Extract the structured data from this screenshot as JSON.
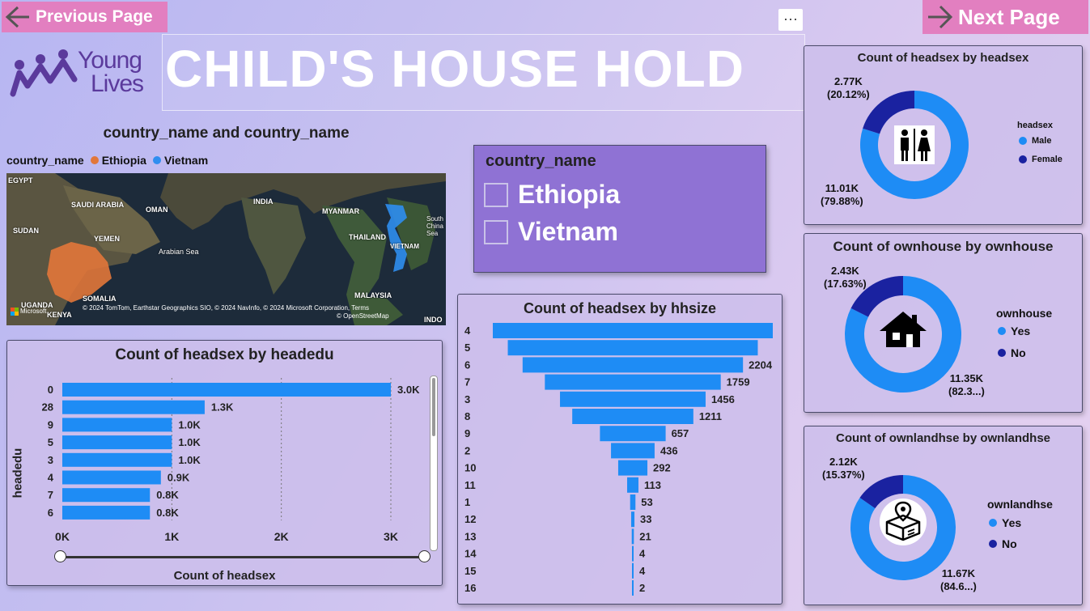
{
  "nav": {
    "previous_label": "Previous Page",
    "next_label": "Next Page",
    "more_label": "···"
  },
  "logo": {
    "line1": "Young",
    "line2": "Lives"
  },
  "page_title": "CHILD'S HOUSE HOLD",
  "map": {
    "title": "country_name and country_name",
    "legend_title": "country_name",
    "legend": [
      {
        "name": "Ethiopia",
        "color": "#e2773a"
      },
      {
        "name": "Vietnam",
        "color": "#2f8ef0"
      }
    ],
    "labels": [
      "EGYPT",
      "SAUDI ARABIA",
      "OMAN",
      "INDIA",
      "MYANMAR",
      "SUDAN",
      "YEMEN",
      "THAILAND",
      "VIETNAM",
      "South China Sea",
      "Arabian Sea",
      "UGANDA",
      "SOMALIA",
      "KENYA",
      "MALAYSIA",
      "INDO"
    ],
    "attribution": "© 2024 TomTom, Earthstar Geographics SIO, © 2024 NavInfo, © 2024 Microsoft Corporation, Terms",
    "osm": "© OpenStreetMap",
    "brand": "Microsoft"
  },
  "slicer": {
    "title": "country_name",
    "items": [
      "Ethiopia",
      "Vietnam"
    ]
  },
  "colors": {
    "bar": "#1e8cf5",
    "dark": "#1a22a0",
    "panel_border": "#4a4a6a"
  },
  "chart_data": [
    {
      "id": "headedu",
      "type": "bar",
      "orientation": "horizontal",
      "title": "Count of headsex by headedu",
      "xlabel": "Count of headsex",
      "ylabel": "headedu",
      "categories": [
        "0",
        "28",
        "9",
        "5",
        "3",
        "4",
        "7",
        "6"
      ],
      "values": [
        3000,
        1300,
        1000,
        1000,
        1000,
        900,
        800,
        800
      ],
      "data_labels": [
        "3.0K",
        "1.3K",
        "1.0K",
        "1.0K",
        "1.0K",
        "0.9K",
        "0.8K",
        "0.8K"
      ],
      "xticks": [
        "0K",
        "1K",
        "2K",
        "3K"
      ],
      "xlim": [
        0,
        3000
      ],
      "grid": true
    },
    {
      "id": "hhsize",
      "type": "bar",
      "orientation": "funnel",
      "title": "Count of headsex by hhsize",
      "categories": [
        "4",
        "5",
        "6",
        "7",
        "3",
        "8",
        "9",
        "2",
        "10",
        "11",
        "1",
        "12",
        "13",
        "14",
        "15",
        "16"
      ],
      "values": [
        2800,
        2500,
        2204,
        1759,
        1456,
        1211,
        657,
        436,
        292,
        113,
        53,
        33,
        21,
        4,
        4,
        2
      ],
      "data_labels": [
        "",
        "",
        "2204",
        "1759",
        "1456",
        "1211",
        "657",
        "436",
        "292",
        "113",
        "53",
        "33",
        "21",
        "4",
        "4",
        "2"
      ]
    },
    {
      "id": "headsex",
      "type": "pie",
      "title": "Count of headsex by headsex",
      "legend_title": "headsex",
      "slices": [
        {
          "name": "Male",
          "value": 11010,
          "label": "11.01K",
          "pct": "(79.88%)",
          "color": "#1e8cf5"
        },
        {
          "name": "Female",
          "value": 2770,
          "label": "2.77K",
          "pct": "(20.12%)",
          "color": "#1a22a0"
        }
      ]
    },
    {
      "id": "ownhouse",
      "type": "pie",
      "title": "Count of ownhouse by ownhouse",
      "legend_title": "ownhouse",
      "slices": [
        {
          "name": "Yes",
          "value": 11350,
          "label": "11.35K",
          "pct": "(82.3...)",
          "color": "#1e8cf5"
        },
        {
          "name": "No",
          "value": 2430,
          "label": "2.43K",
          "pct": "(17.63%)",
          "color": "#1a22a0"
        }
      ]
    },
    {
      "id": "ownlandhse",
      "type": "pie",
      "title": "Count of ownlandhse by ownlandhse",
      "legend_title": "ownlandhse",
      "slices": [
        {
          "name": "Yes",
          "value": 11670,
          "label": "11.67K",
          "pct": "(84.6...)",
          "color": "#1e8cf5"
        },
        {
          "name": "No",
          "value": 2120,
          "label": "2.12K",
          "pct": "(15.37%)",
          "color": "#1a22a0"
        }
      ]
    }
  ]
}
